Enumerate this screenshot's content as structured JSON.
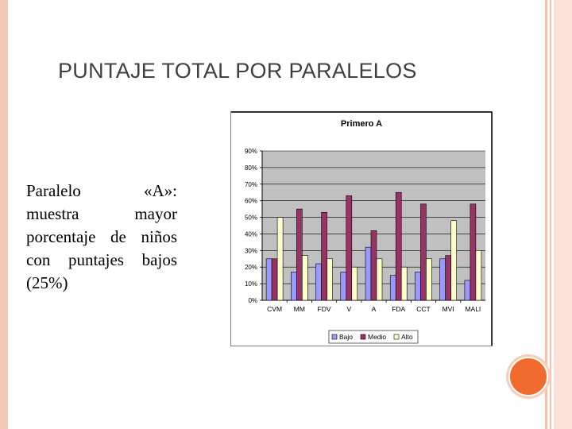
{
  "slide": {
    "title": "PUNTAJE TOTAL POR PARALELOS",
    "body_text": [
      "Paralelo «A»:",
      "muestra mayor",
      "porcentaje de niños",
      "con puntajes bajos",
      "(25%)"
    ]
  },
  "colors": {
    "bajo": "#9999ff",
    "medio": "#993366",
    "alto": "#ffffcc",
    "plot_bg": "#c0c0c0",
    "accent_circle": "#f26b2e"
  },
  "chart_data": {
    "type": "bar",
    "title": "Primero A",
    "categories": [
      "CVM",
      "MM",
      "FDV",
      "V",
      "A",
      "FDA",
      "CCT",
      "MVI",
      "MALI"
    ],
    "series": [
      {
        "name": "Bajo",
        "values": [
          25,
          17,
          22,
          17,
          32,
          15,
          17,
          25,
          12
        ]
      },
      {
        "name": "Medio",
        "values": [
          25,
          55,
          53,
          63,
          42,
          65,
          58,
          27,
          58
        ]
      },
      {
        "name": "Alto",
        "values": [
          50,
          27,
          25,
          20,
          25,
          20,
          25,
          48,
          30
        ]
      }
    ],
    "y_ticks": [
      "0%",
      "10%",
      "20%",
      "30%",
      "40%",
      "50%",
      "60%",
      "70%",
      "80%",
      "90%"
    ],
    "ylim": [
      0,
      90
    ],
    "grid": true,
    "legend_position": "bottom"
  }
}
